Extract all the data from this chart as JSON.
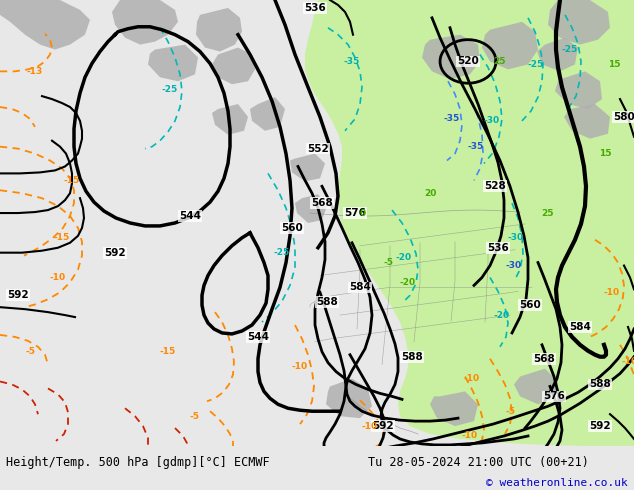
{
  "title_left": "Height/Temp. 500 hPa [gdmp][°C] ECMWF",
  "title_right": "Tu 28-05-2024 21:00 UTC (00+21)",
  "copyright": "© weatheronline.co.uk",
  "bg_color": "#e8e8e8",
  "map_bg_color": "#e8e8e8",
  "green_fill_color": "#c8f0a0",
  "land_gray_color": "#b0b0b0",
  "bottom_bar_color": "#d8d8d8",
  "figsize": [
    6.34,
    4.9
  ],
  "dpi": 100
}
